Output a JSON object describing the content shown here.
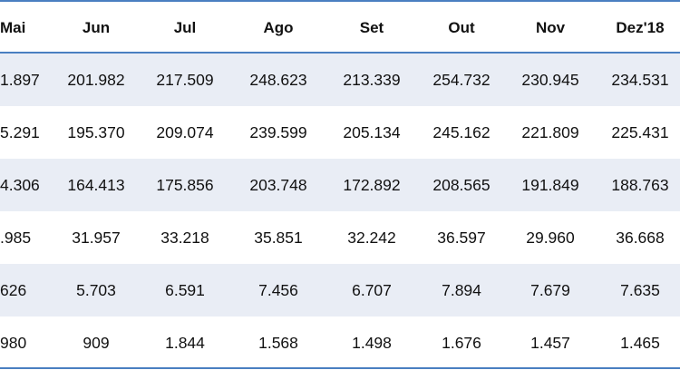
{
  "table": {
    "header": [
      "Mai",
      "Jun",
      "Jul",
      "Ago",
      "Set",
      "Out",
      "Nov",
      "Dez'18"
    ],
    "rows": [
      [
        "1.897",
        "201.982",
        "217.509",
        "248.623",
        "213.339",
        "254.732",
        "230.945",
        "234.531"
      ],
      [
        "5.291",
        "195.370",
        "209.074",
        "239.599",
        "205.134",
        "245.162",
        "221.809",
        "225.431"
      ],
      [
        "4.306",
        "164.413",
        "175.856",
        "203.748",
        "172.892",
        "208.565",
        "191.849",
        "188.763"
      ],
      [
        ".985",
        "31.957",
        "33.218",
        "35.851",
        "32.242",
        "36.597",
        "29.960",
        "36.668"
      ],
      [
        "626",
        "5.703",
        "6.591",
        "7.456",
        "6.707",
        "7.894",
        "7.679",
        "7.635"
      ],
      [
        "980",
        "909",
        "1.844",
        "1.568",
        "1.498",
        "1.676",
        "1.457",
        "1.465"
      ]
    ]
  }
}
